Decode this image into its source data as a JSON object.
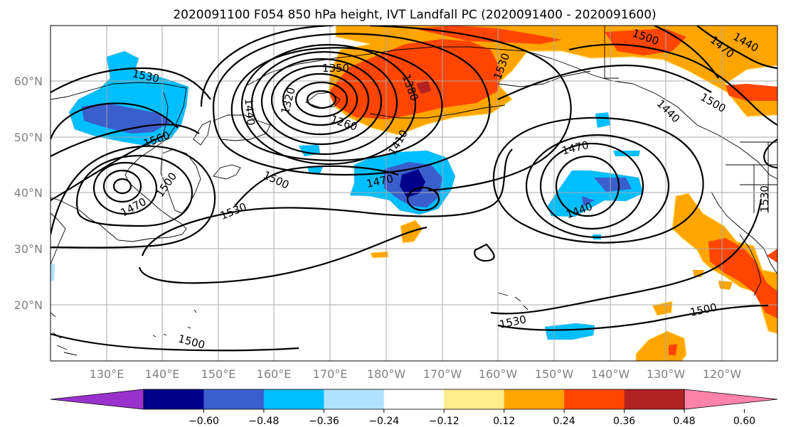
{
  "title": "2020091100 F054 850 hPa height, IVT Landfall PC (2020091400 - 2020091600)",
  "map": {
    "lon_labels": [
      "130°E",
      "140°E",
      "150°E",
      "160°E",
      "170°E",
      "180°W",
      "170°W",
      "160°W",
      "150°W",
      "140°W",
      "130°W",
      "120°W"
    ],
    "lat_labels": [
      "60°N",
      "50°N",
      "40°N",
      "30°N",
      "20°N"
    ]
  },
  "contour_labels": [
    "1530",
    "1560",
    "1470",
    "1500",
    "1410",
    "1440",
    "1350",
    "1380",
    "1260",
    "1320",
    "1530",
    "1500",
    "1470",
    "1440",
    "1530",
    "1500",
    "1530",
    "1500",
    "1440",
    "1470",
    "1500",
    "1530",
    "1500",
    "1470",
    "1440",
    "1380",
    "1410"
  ],
  "colorbar": {
    "ticks": [
      "−0.60",
      "−0.48",
      "−0.36",
      "−0.24",
      "−0.12",
      "0.12",
      "0.24",
      "0.36",
      "0.48",
      "0.60"
    ],
    "colors": [
      "#9932cc",
      "#00008b",
      "#3a5fcd",
      "#00bfff",
      "#b0e2ff",
      "#ffffff",
      "#ffec8b",
      "#ffa500",
      "#ff4500",
      "#b22222",
      "#ff82ab"
    ]
  }
}
